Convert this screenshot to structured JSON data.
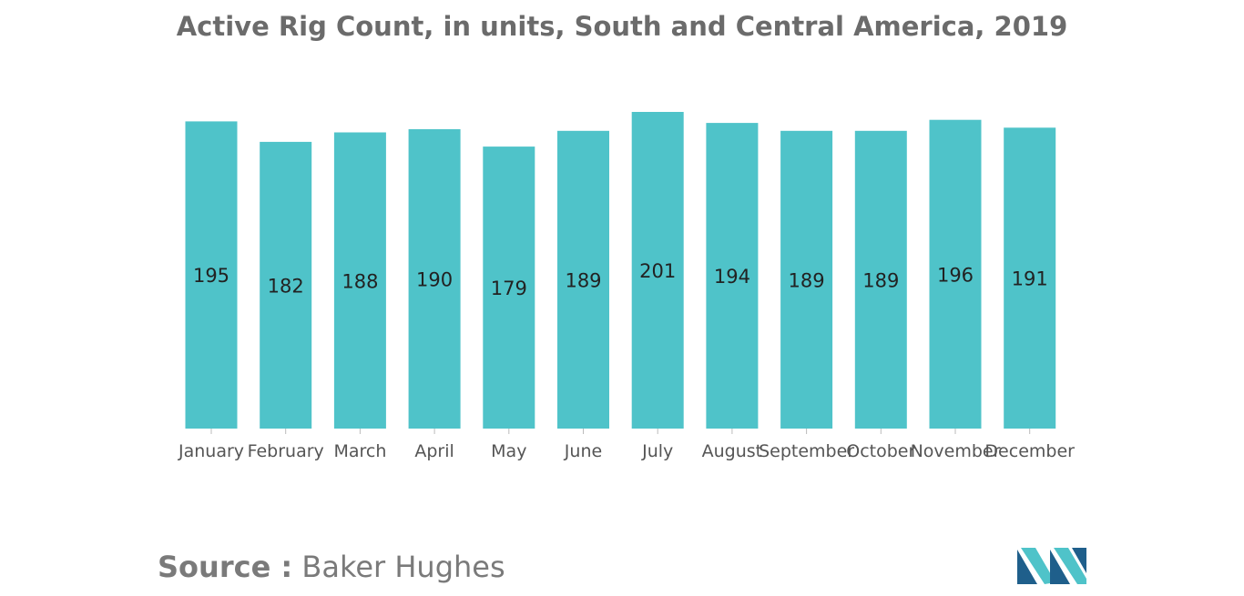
{
  "title": "Active Rig Count, in units, South and Central America, 2019",
  "source": {
    "label": "Source :",
    "name": "Baker Hughes"
  },
  "colors": {
    "bar": "#4fc3c9",
    "title": "#6b6b6b",
    "axis_text": "#555555",
    "value_label": "#222222",
    "logo_dark": "#1f5f8b",
    "logo_light": "#4fc3c9"
  },
  "chart_data": {
    "type": "bar",
    "title": "Active Rig Count, in units, South and Central America, 2019",
    "xlabel": "",
    "ylabel": "",
    "categories": [
      "January",
      "February",
      "March",
      "April",
      "May",
      "June",
      "July",
      "August",
      "September",
      "October",
      "November",
      "December"
    ],
    "values": [
      195,
      182,
      188,
      190,
      179,
      189,
      201,
      194,
      189,
      189,
      196,
      191
    ],
    "data_labels": [
      "195",
      "182",
      "188",
      "190",
      "179",
      "189",
      "201",
      "194",
      "189",
      "189",
      "196",
      "191"
    ],
    "ylim": [
      0,
      201
    ],
    "grid": false,
    "legend": "none"
  }
}
